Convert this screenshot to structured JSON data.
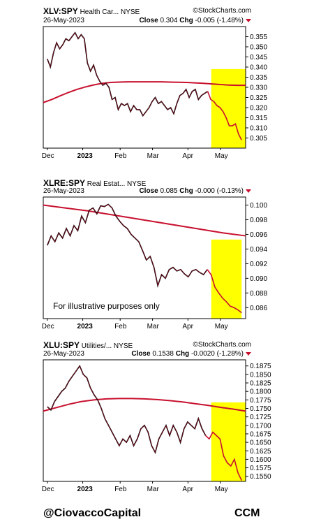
{
  "footer": {
    "left": "@CiovaccoCapital",
    "right": "CCM"
  },
  "logo": "StockCharts.com",
  "chart_data": [
    {
      "type": "line",
      "symbol": "XLV:SPY",
      "name": "Health Car...",
      "exchange": "NYSE",
      "date": "26-May-2023",
      "close_label": "Close",
      "close": "0.304",
      "chg_label": "Chg",
      "chg": "-0.005 (-1.48%)",
      "ylim": [
        0.3,
        0.36
      ],
      "yticks": [
        "0.305",
        "0.310",
        "0.315",
        "0.320",
        "0.325",
        "0.330",
        "0.335",
        "0.340",
        "0.345",
        "0.350",
        "0.355"
      ],
      "xticks": [
        {
          "label": "Dec",
          "t": 0.02,
          "bold": false
        },
        {
          "label": "2023",
          "t": 0.195,
          "bold": true
        },
        {
          "label": "Feb",
          "t": 0.38,
          "bold": false
        },
        {
          "label": "Mar",
          "t": 0.54,
          "bold": false
        },
        {
          "label": "Apr",
          "t": 0.715,
          "bold": false
        },
        {
          "label": "May",
          "t": 0.875,
          "bold": false
        }
      ],
      "highlight": [
        0.83,
        1.0
      ],
      "annotation": "",
      "series": [
        {
          "color": "#000",
          "values": [
            0.344,
            0.34,
            0.347,
            0.352,
            0.349,
            0.351,
            0.354,
            0.353,
            0.355,
            0.357,
            0.354,
            0.356,
            0.354,
            0.342,
            0.338,
            0.341,
            0.336,
            0.333,
            0.331,
            0.332,
            0.33,
            0.324,
            0.325,
            0.319,
            0.322,
            0.321,
            0.322,
            0.318,
            0.321,
            0.319,
            0.319,
            0.316,
            0.318,
            0.32,
            0.323,
            0.325,
            0.322,
            0.323,
            0.321,
            0.319,
            0.32,
            0.317,
            0.322,
            0.326,
            0.327,
            0.329,
            0.325,
            0.328,
            0.329,
            0.324,
            0.326,
            0.327,
            0.328,
            0.324,
            0.323,
            0.321,
            0.32,
            0.318,
            0.315,
            0.311,
            0.311,
            0.312,
            0.307,
            0.304
          ]
        },
        {
          "color": "#c8102e",
          "values": [
            0.3225,
            0.324,
            0.3258,
            0.3275,
            0.329,
            0.3302,
            0.3312,
            0.332,
            0.3324,
            0.3326,
            0.3327,
            0.3327,
            0.3327,
            0.3327,
            0.3327,
            0.3326,
            0.3325,
            0.3324,
            0.3322,
            0.332,
            0.3317,
            0.3314,
            0.3311,
            0.331,
            0.331
          ]
        }
      ],
      "red_segment_start": 0.83
    },
    {
      "type": "line",
      "symbol": "XLRE:SPY",
      "name": "Real Estat...",
      "exchange": "NYSE",
      "date": "26-May-2023",
      "close_label": "Close",
      "close": "0.085",
      "chg_label": "Chg",
      "chg": "-0.000 (-0.13%)",
      "ylim": [
        0.0845,
        0.1011
      ],
      "yticks": [
        "0.086",
        "0.088",
        "0.090",
        "0.092",
        "0.094",
        "0.096",
        "0.098",
        "0.100"
      ],
      "xticks": [
        {
          "label": "Dec",
          "t": 0.02,
          "bold": false
        },
        {
          "label": "2023",
          "t": 0.195,
          "bold": true
        },
        {
          "label": "Feb",
          "t": 0.38,
          "bold": false
        },
        {
          "label": "Mar",
          "t": 0.54,
          "bold": false
        },
        {
          "label": "Apr",
          "t": 0.715,
          "bold": false
        },
        {
          "label": "May",
          "t": 0.875,
          "bold": false
        }
      ],
      "highlight": [
        0.83,
        0.98
      ],
      "annotation": "For illustrative purposes only",
      "series": [
        {
          "color": "#000",
          "values": [
            0.0945,
            0.0958,
            0.095,
            0.0962,
            0.0955,
            0.0968,
            0.0958,
            0.0972,
            0.0965,
            0.0985,
            0.0976,
            0.0993,
            0.0996,
            0.0988,
            0.0999,
            0.0998,
            0.1001,
            0.0996,
            0.0985,
            0.0978,
            0.0972,
            0.0968,
            0.096,
            0.0955,
            0.095,
            0.0938,
            0.0925,
            0.093,
            0.0915,
            0.089,
            0.0905,
            0.09,
            0.0912,
            0.0915,
            0.091,
            0.0912,
            0.0906,
            0.0902,
            0.091,
            0.0912,
            0.0908,
            0.0905,
            0.0912,
            0.0905,
            0.0888,
            0.088,
            0.0873,
            0.0868,
            0.0862,
            0.086,
            0.0857,
            0.0853
          ]
        },
        {
          "color": "#c8102e",
          "values": [
            0.1,
            0.0996,
            0.0992,
            0.0987,
            0.0982,
            0.0977,
            0.0972,
            0.0967,
            0.0962,
            0.0958
          ]
        }
      ],
      "red_segment_start": 0.83
    },
    {
      "type": "line",
      "symbol": "XLU:SPY",
      "name": "Utilities/...",
      "exchange": "NYSE",
      "date": "26-May-2023",
      "close_label": "Close",
      "close": "0.1538",
      "chg_label": "Chg",
      "chg": "-0.0020 (-1.28%)",
      "ylim": [
        0.1535,
        0.1893
      ],
      "yticks": [
        "0.1550",
        "0.1575",
        "0.1600",
        "0.1625",
        "0.1650",
        "0.1675",
        "0.1700",
        "0.1725",
        "0.1750",
        "0.1775",
        "0.1800",
        "0.1825",
        "0.1850",
        "0.1875"
      ],
      "xticks": [
        {
          "label": "Dec",
          "t": 0.02,
          "bold": false
        },
        {
          "label": "2023",
          "t": 0.195,
          "bold": true
        },
        {
          "label": "Feb",
          "t": 0.38,
          "bold": false
        },
        {
          "label": "Mar",
          "t": 0.54,
          "bold": false
        },
        {
          "label": "Apr",
          "t": 0.715,
          "bold": false
        },
        {
          "label": "May",
          "t": 0.875,
          "bold": false
        }
      ],
      "highlight": [
        0.83,
        1.0
      ],
      "annotation": "",
      "series": [
        {
          "color": "#000",
          "values": [
            0.1755,
            0.1745,
            0.177,
            0.1785,
            0.18,
            0.181,
            0.183,
            0.1845,
            0.186,
            0.1875,
            0.185,
            0.184,
            0.181,
            0.179,
            0.1775,
            0.175,
            0.172,
            0.17,
            0.168,
            0.166,
            0.164,
            0.166,
            0.165,
            0.167,
            0.164,
            0.166,
            0.169,
            0.17,
            0.168,
            0.164,
            0.162,
            0.166,
            0.168,
            0.17,
            0.167,
            0.17,
            0.168,
            0.165,
            0.169,
            0.171,
            0.17,
            0.169,
            0.172,
            0.169,
            0.167,
            0.166,
            0.168,
            0.167,
            0.166,
            0.161,
            0.159,
            0.158,
            0.16,
            0.156,
            0.1538
          ]
        },
        {
          "color": "#c8102e",
          "values": [
            0.1742,
            0.1752,
            0.1762,
            0.177,
            0.1775,
            0.1778,
            0.1779,
            0.1779,
            0.1778,
            0.1776,
            0.1773,
            0.1769,
            0.1764,
            0.1759,
            0.1753,
            0.1748,
            0.1742
          ]
        }
      ],
      "red_segment_start": 0.83
    }
  ]
}
